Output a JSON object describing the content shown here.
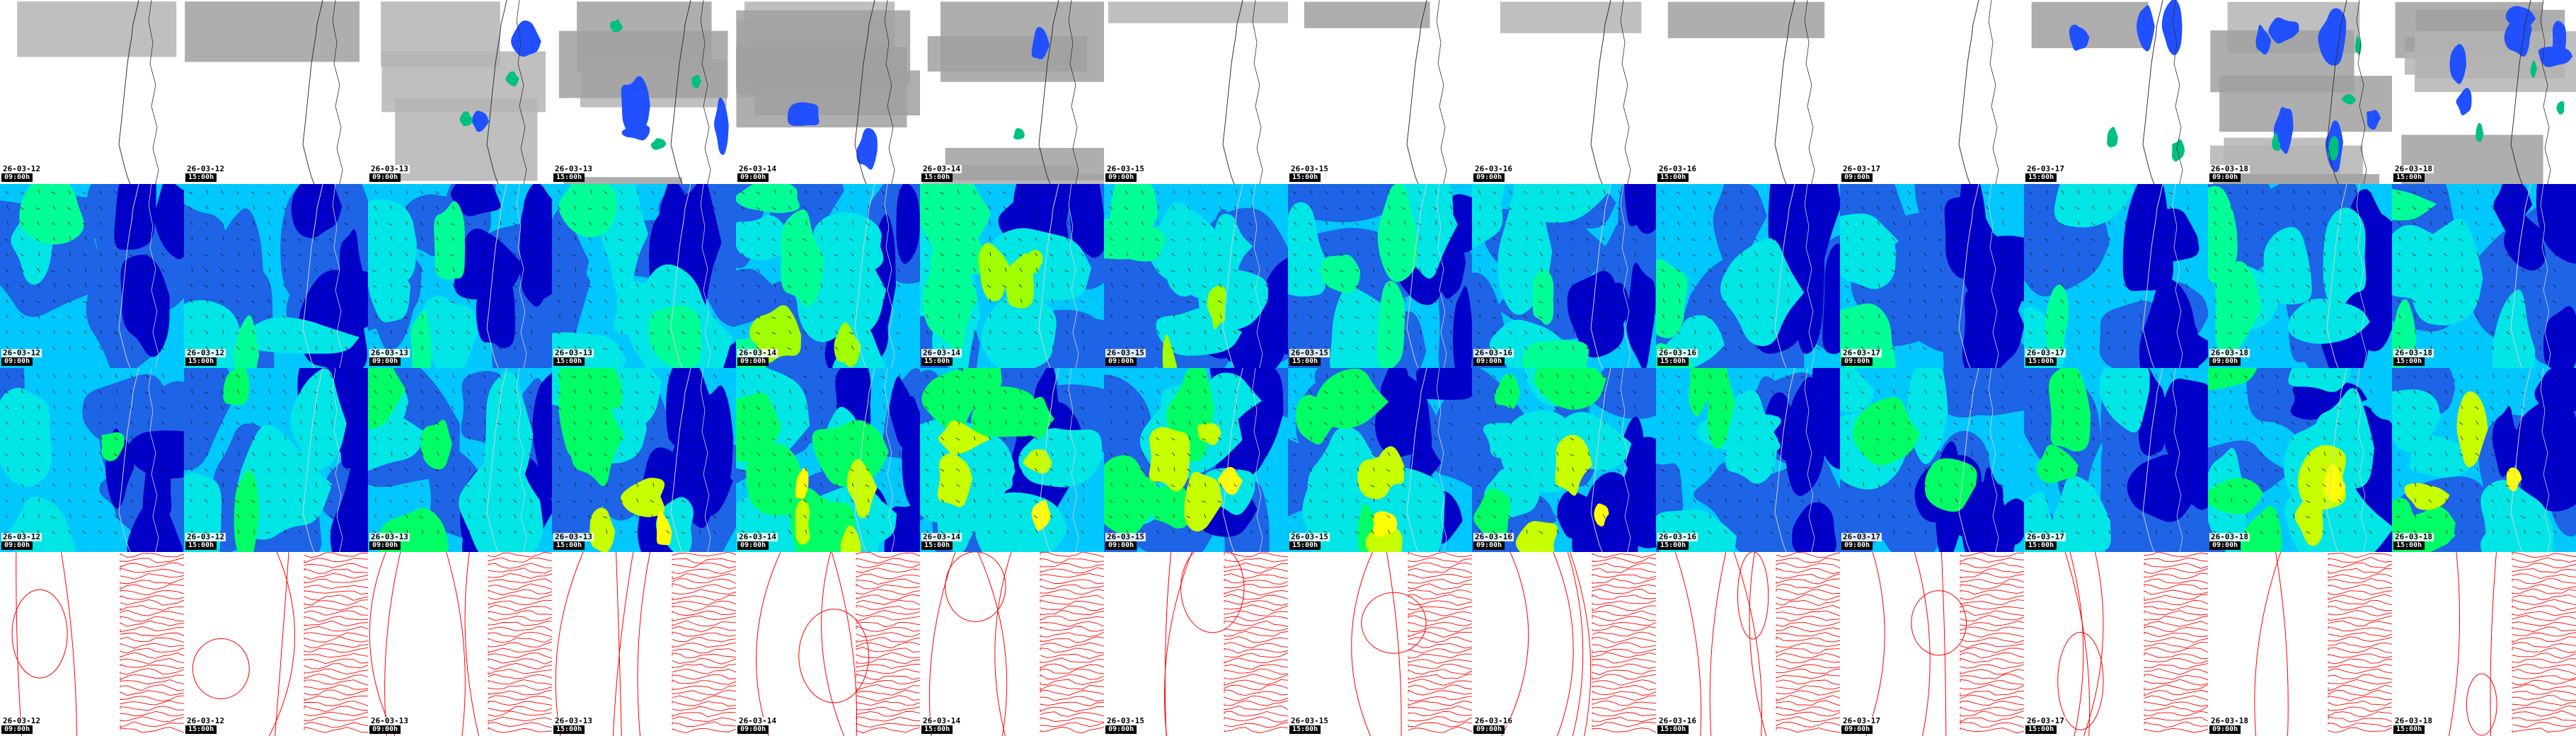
{
  "rows": [
    {
      "variable": "precipitation",
      "colors": [
        "#ffffff",
        "#b4b4b4",
        "#a0a0a0",
        "#2050ff",
        "#00c080"
      ]
    },
    {
      "variable": "wind-10m",
      "colors": [
        "#0000c8",
        "#1e64e6",
        "#00c8ff",
        "#00e6e6",
        "#00ff96",
        "#a0ff00"
      ]
    },
    {
      "variable": "wind-gusts",
      "colors": [
        "#0000c8",
        "#1e64e6",
        "#00c8ff",
        "#00e6e6",
        "#00ff64",
        "#c8ff00",
        "#ffff00"
      ]
    },
    {
      "variable": "pressure-isobars",
      "colors": [
        "#ff0000",
        "#ffffff"
      ]
    }
  ],
  "timesteps": [
    {
      "date": "26-03-12",
      "time": "09:00h"
    },
    {
      "date": "26-03-12",
      "time": "15:00h"
    },
    {
      "date": "26-03-13",
      "time": "09:00h"
    },
    {
      "date": "26-03-13",
      "time": "15:00h"
    },
    {
      "date": "26-03-14",
      "time": "09:00h"
    },
    {
      "date": "26-03-14",
      "time": "15:00h"
    },
    {
      "date": "26-03-15",
      "time": "09:00h"
    },
    {
      "date": "26-03-15",
      "time": "15:00h"
    },
    {
      "date": "26-03-16",
      "time": "09:00h"
    },
    {
      "date": "26-03-16",
      "time": "15:00h"
    },
    {
      "date": "26-03-17",
      "time": "09:00h"
    },
    {
      "date": "26-03-17",
      "time": "15:00h"
    },
    {
      "date": "26-03-18",
      "time": "09:00h"
    },
    {
      "date": "26-03-18",
      "time": "15:00h"
    }
  ]
}
